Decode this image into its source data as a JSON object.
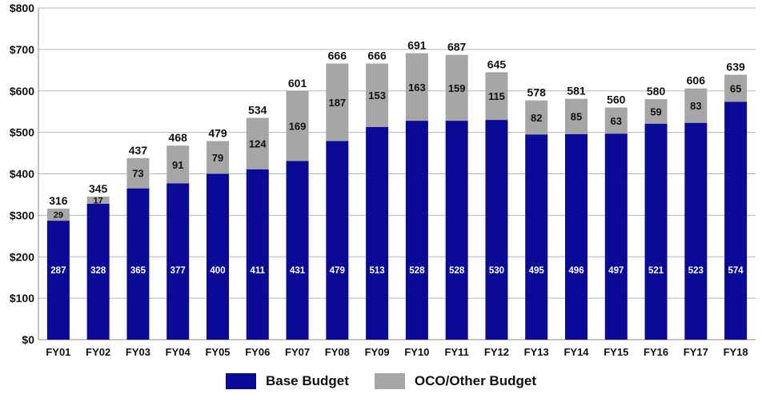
{
  "chart_data": {
    "type": "bar",
    "stacked": true,
    "categories": [
      "FY01",
      "FY02",
      "FY03",
      "FY04",
      "FY05",
      "FY06",
      "FY07",
      "FY08",
      "FY09",
      "FY10",
      "FY11",
      "FY12",
      "FY13",
      "FY14",
      "FY15",
      "FY16",
      "FY17",
      "FY18"
    ],
    "series": [
      {
        "name": "Base Budget",
        "color": "#0a0a96",
        "values": [
          287,
          328,
          365,
          377,
          400,
          411,
          431,
          479,
          513,
          528,
          528,
          530,
          495,
          496,
          497,
          521,
          523,
          574
        ]
      },
      {
        "name": "OCO/Other  Budget",
        "color": "#a6a6a6",
        "values": [
          29,
          17,
          73,
          91,
          79,
          124,
          169,
          187,
          153,
          163,
          159,
          115,
          82,
          85,
          63,
          59,
          83,
          65
        ]
      }
    ],
    "totals": [
      316,
      345,
      437,
      468,
      479,
      534,
      601,
      666,
      666,
      691,
      687,
      645,
      578,
      581,
      560,
      580,
      606,
      639
    ],
    "ylim": [
      0,
      800
    ],
    "yticks": [
      "$0",
      "$100",
      "$200",
      "$300",
      "$400",
      "$500",
      "$600",
      "$700",
      "$800"
    ],
    "ytick_values": [
      0,
      100,
      200,
      300,
      400,
      500,
      600,
      700,
      800
    ],
    "grid": "horizontal",
    "legend_position": "bottom",
    "title": "",
    "xlabel": "",
    "ylabel": ""
  }
}
